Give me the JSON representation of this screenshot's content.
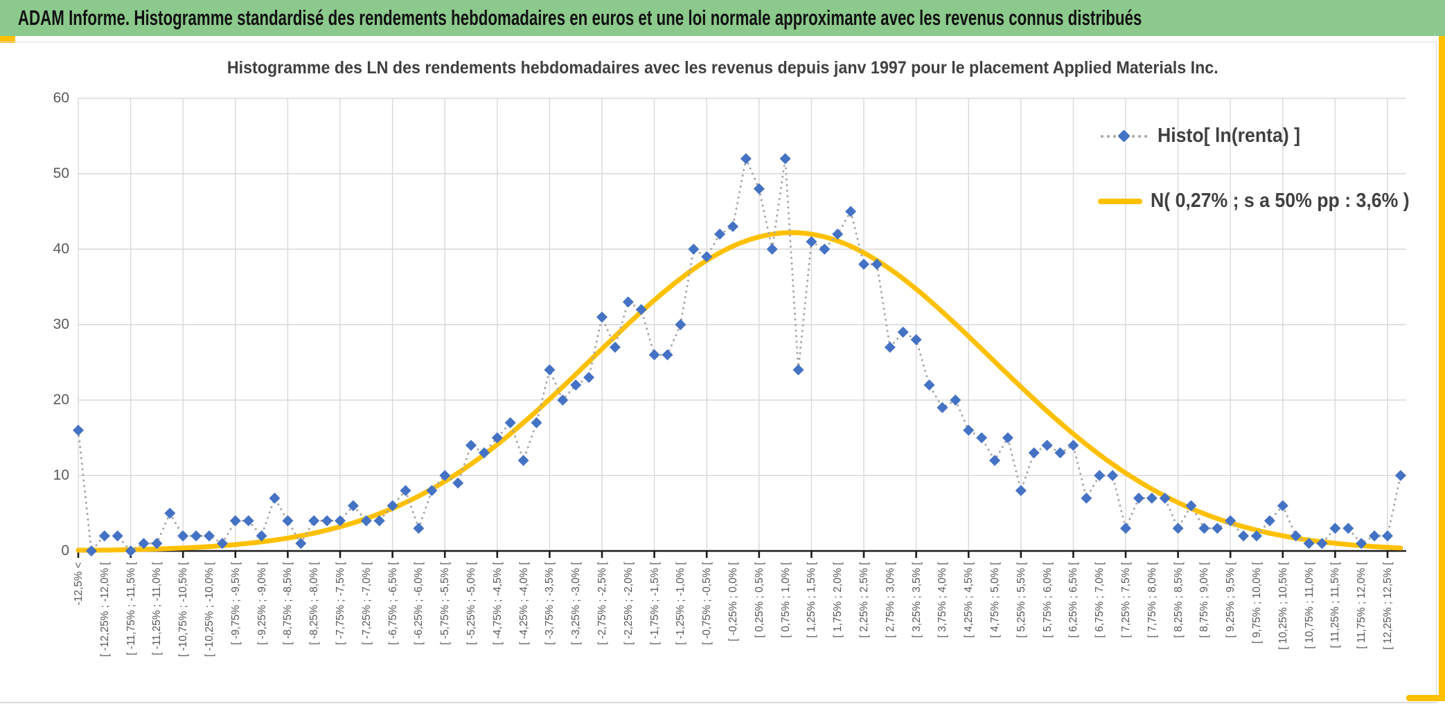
{
  "banner": {
    "title": "ADAM Informe. Histogramme standardisé des rendements hebdomadaires en euros et une loi normale approximante avec les revenus connus distribués"
  },
  "chart": {
    "title": "Histogramme des LN des rendements hebdomadaires avec les revenus depuis janv 1997 pour le placement Applied Materials Inc.",
    "legend": [
      {
        "label": "Histo[ ln(renta) ]",
        "marker": "blue-diamond-dotted-line"
      },
      {
        "label": "N( 0,27% ; s a 50% pp : 3,6% )",
        "marker": "yellow-solid-line"
      }
    ]
  },
  "colors": {
    "banner_green": "#8CC98C",
    "accent_gold": "#FFC000",
    "series_blue": "#4472C4",
    "dotted_gray": "#A6A6A6",
    "grid_gray": "#D9D9D9",
    "axis_black": "#1A1A1A",
    "text_dark": "#404040",
    "text_gray": "#595959"
  },
  "chart_data": {
    "type": "line",
    "title": "Histogramme des LN des rendements hebdomadaires avec les revenus depuis janv 1997 pour le placement Applied Materials Inc.",
    "ylim": [
      0,
      60
    ],
    "y_ticks": [
      0,
      10,
      20,
      30,
      40,
      50,
      60
    ],
    "grid": true,
    "legend_position": "right-top",
    "n_bins": 102,
    "label_step": 2,
    "x_labels": [
      "-12,5% <",
      "[ -12,25% ; -12,0% [",
      "[ -11,75% ; -11,5% [",
      "[ -11,25% ; -11,0% [",
      "[ -10,75% ; -10,5% [",
      "[ -10,25% ; -10,0% [",
      "[ -9,75% ; -9,5% [",
      "[ -9,25% ; -9,0% [",
      "[ -8,75% ; -8,5% [",
      "[ -8,25% ; -8,0% [",
      "[ -7,75% ; -7,5% [",
      "[ -7,25% ; -7,0% [",
      "[ -6,75% ; -6,5% [",
      "[ -6,25% ; -6,0% [",
      "[ -5,75% ; -5,5% [",
      "[ -5,25% ; -5,0% [",
      "[ -4,75% ; -4,5% [",
      "[ -4,25% ; -4,0% [",
      "[ -3,75% ; -3,5% [",
      "[ -3,25% ; -3,0% [",
      "[ -2,75% ; -2,5% [",
      "[ -2,25% ; -2,0% [",
      "[ -1,75% ; -1,5% [",
      "[ -1,25% ; -1,0% [",
      "[ -0,75% ; -0,5% [",
      "[ -0,25% ; 0,0% [",
      "[ 0,25% ; 0,5% [",
      "[ 0,75% ; 1,0% [",
      "[ 1,25% ; 1,5% [",
      "[ 1,75% ; 2,0% [",
      "[ 2,25% ; 2,5% [",
      "[ 2,75% ; 3,0% [",
      "[ 3,25% ; 3,5% [",
      "[ 3,75% ; 4,0% [",
      "[ 4,25% ; 4,5% [",
      "[ 4,75% ; 5,0% [",
      "[ 5,25% ; 5,5% [",
      "[ 5,75% ; 6,0% [",
      "[ 6,25% ; 6,5% [",
      "[ 6,75% ; 7,0% [",
      "[ 7,25% ; 7,5% [",
      "[ 7,75% ; 8,0% [",
      "[ 8,25% ; 8,5% [",
      "[ 8,75% ; 9,0% [",
      "[ 9,25% ; 9,5% [",
      "[ 9,75% ; 10,0% [",
      "[ 10,25% ; 10,5% [",
      "[ 10,75% ; 11,0% [",
      "[ 11,25% ; 11,5% [",
      "[ 11,75% ; 12,0% [",
      "[ 12,25% ; 12,5% ["
    ],
    "series": [
      {
        "name": "Histo[ ln(renta) ]",
        "style": "blue-diamonds-dotted",
        "values": [
          16,
          0,
          2,
          2,
          0,
          1,
          1,
          5,
          2,
          2,
          2,
          1,
          4,
          4,
          2,
          7,
          4,
          1,
          4,
          4,
          4,
          6,
          4,
          4,
          6,
          8,
          3,
          8,
          10,
          9,
          14,
          13,
          15,
          17,
          12,
          17,
          24,
          20,
          22,
          23,
          31,
          27,
          33,
          32,
          26,
          26,
          30,
          40,
          39,
          42,
          43,
          52,
          48,
          40,
          52,
          24,
          41,
          40,
          42,
          45,
          38,
          38,
          27,
          29,
          28,
          22,
          19,
          20,
          16,
          15,
          12,
          15,
          8,
          13,
          14,
          13,
          14,
          7,
          10,
          10,
          3,
          7,
          7,
          7,
          3,
          6,
          3,
          3,
          4,
          2,
          2,
          4,
          6,
          2,
          1,
          1,
          3,
          3,
          1,
          2,
          2,
          10
        ]
      },
      {
        "name": "N( 0,27% ; s a 50% pp : 3,6% )",
        "style": "yellow-gaussian-curve",
        "gaussian": {
          "amplitude": 42.2,
          "center_bin": 55.5,
          "sigma_bins": 15.2
        }
      }
    ]
  }
}
